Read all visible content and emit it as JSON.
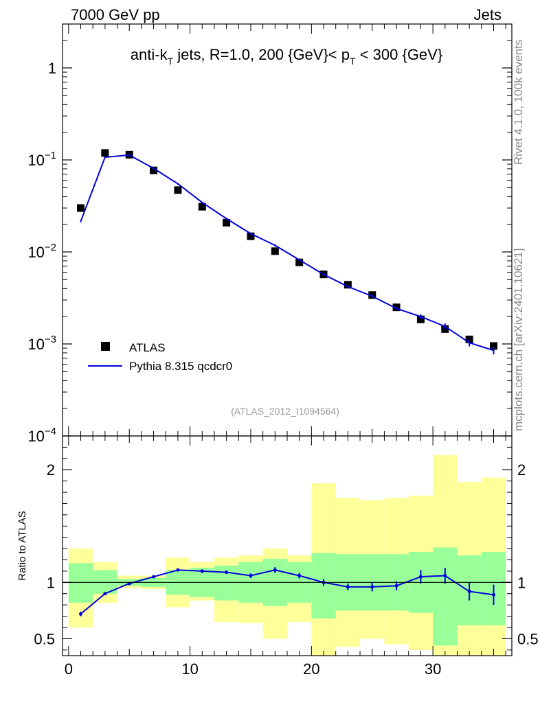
{
  "header": {
    "left": "7000 GeV pp",
    "right": "Jets"
  },
  "side_text": {
    "rivet": "Rivet 4.1.0,  100k events",
    "site": "mcplots.cern.ch [arXiv:2401.10621]"
  },
  "chart_data": [
    {
      "type": "line",
      "panel": "main",
      "title": "anti-k_T jets, R=1.0, 200 {GeV}< p_T < 300 {GeV}",
      "title_parts": {
        "a": "anti-k",
        "a_sub": "T",
        "b": " jets, R=1.0, 200 {GeV}< p",
        "b_sub": "T",
        "c": " < 300 {GeV}"
      },
      "analysis_label": "(ATLAS_2012_I1094564)",
      "yscale": "log",
      "ylim": [
        0.0001,
        3
      ],
      "xlim": [
        -0.5,
        36.5
      ],
      "y_ticks": [
        {
          "value": 1,
          "label": "1"
        },
        {
          "value": 0.1,
          "base": "10",
          "exp": "−1"
        },
        {
          "value": 0.01,
          "base": "10",
          "exp": "−2"
        },
        {
          "value": 0.001,
          "base": "10",
          "exp": "−3"
        },
        {
          "value": 0.0001,
          "base": "10",
          "exp": "−4"
        }
      ],
      "legend": {
        "placement": "bottom-left",
        "entries": [
          {
            "name": "ATLAS",
            "marker": "square",
            "color": "#000000"
          },
          {
            "name": "Pythia 8.315 qcdcr0",
            "marker": "line",
            "color": "#0000dd"
          }
        ]
      },
      "series": [
        {
          "name": "ATLAS",
          "color": "#000000",
          "x": [
            1,
            3,
            5,
            7,
            9,
            11,
            13,
            15,
            17,
            19,
            21,
            23,
            25,
            27,
            29,
            31,
            33,
            35
          ],
          "y": [
            0.03,
            0.119,
            0.114,
            0.077,
            0.047,
            0.031,
            0.0208,
            0.0148,
            0.0102,
            0.0077,
            0.0057,
            0.0044,
            0.0034,
            0.0025,
            0.00185,
            0.00145,
            0.00112,
            0.00095
          ]
        },
        {
          "name": "Pythia 8.315 qcdcr0",
          "color": "#0000dd",
          "x": [
            1,
            3,
            5,
            7,
            9,
            11,
            13,
            15,
            17,
            19,
            21,
            23,
            25,
            27,
            29,
            31,
            33,
            35
          ],
          "y": [
            0.0215,
            0.107,
            0.113,
            0.081,
            0.055,
            0.0345,
            0.023,
            0.0158,
            0.0118,
            0.0082,
            0.0057,
            0.0042,
            0.0033,
            0.00243,
            0.00198,
            0.00155,
            0.00103,
            0.00085
          ],
          "yerr": [
            0.0005,
            0.002,
            0.002,
            0.0015,
            0.001,
            0.0007,
            0.0005,
            0.0003,
            0.0003,
            0.0002,
            0.00015,
            0.0001,
            0.0001,
            8e-05,
            0.00012,
            0.00012,
            9e-05,
            8e-05
          ]
        }
      ]
    },
    {
      "type": "line",
      "panel": "ratio",
      "ylabel": "Ratio to ATLAS",
      "ylim": [
        0.35,
        2.3
      ],
      "xlim": [
        -0.5,
        36.5
      ],
      "y_ticks": [
        0.5,
        1,
        2
      ],
      "y_tick_labels": [
        "0.5",
        "1",
        "2"
      ],
      "x_ticks": [
        0,
        10,
        20,
        30
      ],
      "x_tick_labels": [
        "0",
        "10",
        "20",
        "30"
      ],
      "bands": {
        "x_edges": [
          0,
          2,
          4,
          6,
          8,
          10,
          12,
          14,
          16,
          18,
          20,
          22,
          24,
          26,
          28,
          30,
          32,
          34,
          36
        ],
        "inner_color": "#99ff99",
        "outer_color": "#ffff99",
        "inner_lo": [
          0.82,
          0.9,
          0.97,
          0.96,
          0.89,
          0.87,
          0.84,
          0.82,
          0.79,
          0.82,
          0.68,
          0.75,
          0.75,
          0.75,
          0.73,
          0.44,
          0.62,
          0.62
        ],
        "inner_hi": [
          1.17,
          1.11,
          1.03,
          1.04,
          1.11,
          1.13,
          1.15,
          1.18,
          1.21,
          1.18,
          1.26,
          1.25,
          1.25,
          1.25,
          1.27,
          1.31,
          1.24,
          1.27
        ],
        "outer_lo": [
          0.6,
          0.82,
          0.95,
          0.94,
          0.78,
          0.84,
          0.65,
          0.64,
          0.5,
          0.65,
          0.3,
          0.43,
          0.5,
          0.45,
          0.4,
          0.3,
          0.3,
          0.3
        ],
        "outer_hi": [
          1.3,
          1.18,
          1.06,
          1.06,
          1.22,
          1.18,
          1.22,
          1.24,
          1.3,
          1.24,
          1.88,
          1.75,
          1.73,
          1.75,
          1.77,
          2.13,
          1.89,
          1.93
        ]
      },
      "series": [
        {
          "name": "Pythia 8.315 qcdcr0",
          "color": "#0000dd",
          "x": [
            1,
            3,
            5,
            7,
            9,
            11,
            13,
            15,
            17,
            19,
            21,
            23,
            25,
            27,
            29,
            31,
            33,
            35
          ],
          "y": [
            0.72,
            0.9,
            0.99,
            1.05,
            1.11,
            1.1,
            1.09,
            1.06,
            1.11,
            1.06,
            1.0,
            0.96,
            0.96,
            0.97,
            1.05,
            1.06,
            0.92,
            0.89
          ],
          "yerr": [
            0.02,
            0.01,
            0.01,
            0.01,
            0.01,
            0.015,
            0.015,
            0.02,
            0.025,
            0.025,
            0.03,
            0.03,
            0.04,
            0.04,
            0.06,
            0.07,
            0.08,
            0.09
          ]
        }
      ]
    }
  ]
}
